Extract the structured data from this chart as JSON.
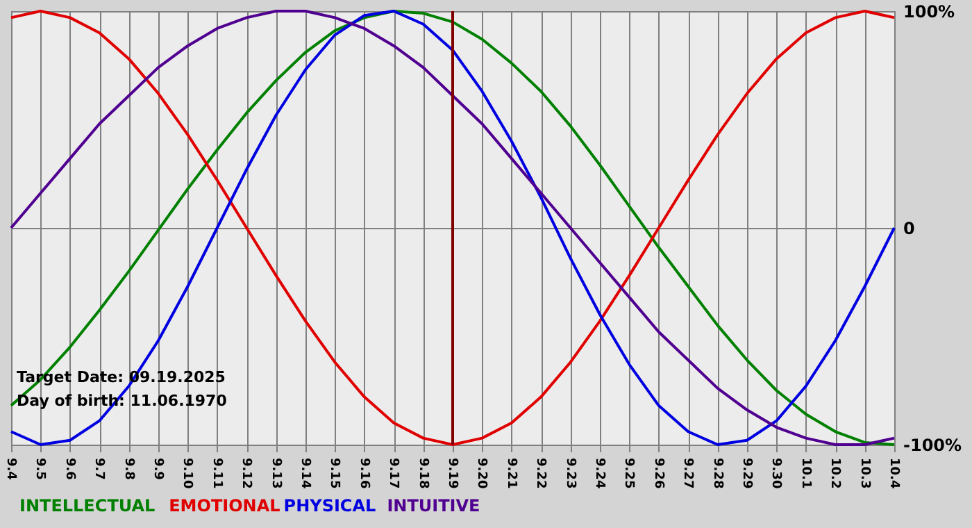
{
  "chart_data": {
    "type": "line",
    "categories": [
      "9.4",
      "9.5",
      "9.6",
      "9.7",
      "9.8",
      "9.9",
      "9.10",
      "9.11",
      "9.12",
      "9.13",
      "9.14",
      "9.15",
      "9.16",
      "9.17",
      "9.18",
      "9.19",
      "9.20",
      "9.21",
      "9.22",
      "9.23",
      "9.24",
      "9.25",
      "9.26",
      "9.27",
      "9.28",
      "9.29",
      "9.30",
      "10.1",
      "10.2",
      "10.3",
      "10.4"
    ],
    "series": [
      {
        "name": "INTELLECTUAL",
        "color": "#008000",
        "values": [
          -82,
          -70,
          -55,
          -38,
          -20,
          -1,
          18,
          36,
          53,
          68,
          81,
          91,
          97,
          100,
          99,
          95,
          87,
          76,
          63,
          47,
          29,
          10,
          -9,
          -27,
          -45,
          -61,
          -75,
          -86,
          -94,
          -99,
          -100
        ]
      },
      {
        "name": "EMOTIONAL",
        "color": "#e00000",
        "values": [
          97,
          100,
          97,
          90,
          78,
          62,
          43,
          22,
          0,
          -22,
          -43,
          -62,
          -78,
          -90,
          -97,
          -100,
          -97,
          -90,
          -78,
          -62,
          -43,
          -22,
          0,
          22,
          43,
          62,
          78,
          90,
          97,
          100,
          97
        ]
      },
      {
        "name": "PHYSICAL",
        "color": "#0000e0",
        "values": [
          -94,
          -100,
          -98,
          -89,
          -73,
          -52,
          -27,
          0,
          27,
          52,
          73,
          89,
          98,
          100,
          94,
          82,
          63,
          40,
          14,
          -14,
          -40,
          -63,
          -82,
          -94,
          -100,
          -98,
          -89,
          -73,
          -52,
          -27,
          0
        ]
      },
      {
        "name": "INTUITIVE",
        "color": "#500090",
        "values": [
          0,
          16,
          32,
          48,
          61,
          74,
          84,
          92,
          97,
          100,
          100,
          97,
          92,
          84,
          74,
          61,
          48,
          32,
          16,
          0,
          -16,
          -32,
          -48,
          -61,
          -74,
          -84,
          -92,
          -97,
          -100,
          -100,
          -97
        ]
      }
    ],
    "ylim": [
      -100,
      100
    ],
    "yticks": [
      {
        "value": -100,
        "label": "-100%"
      },
      0,
      {
        "value": 100,
        "label": "100%"
      }
    ],
    "ref_lines": [
      {
        "axis": "x",
        "value": "9.19",
        "color": "#800000"
      }
    ],
    "annotations": [
      "Target Date: 09.19.2025",
      "Day of birth: 11.06.1970"
    ],
    "grid": true,
    "legend": "bottom",
    "marker": "none",
    "line_style": "solid"
  }
}
